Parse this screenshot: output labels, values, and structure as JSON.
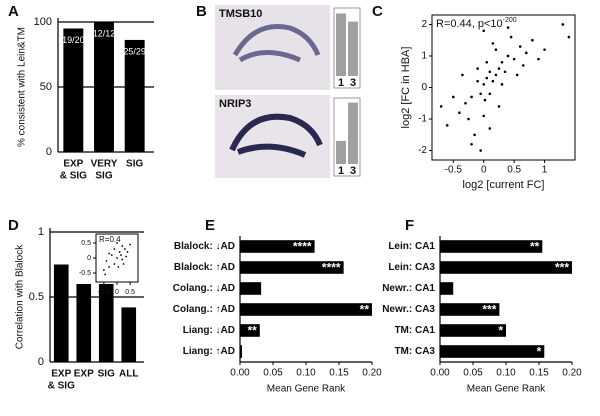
{
  "chart_data": [
    {
      "type": "bar",
      "panel": "A",
      "ylabel": "% consistent with Lein&TM",
      "categories": [
        [
          "EXP",
          "& SIG"
        ],
        [
          "VERY",
          "SIG"
        ],
        [
          "SIG"
        ]
      ],
      "values": [
        95,
        100,
        86.2
      ],
      "value_labels": [
        "19/20",
        "12/12",
        "25/29"
      ],
      "color": "#000000",
      "ylim": [
        0,
        100
      ],
      "yticks": [
        0,
        50,
        100
      ],
      "grid": true
    },
    {
      "type": "image",
      "panel": "B",
      "images": [
        {
          "title": "TMSB10",
          "categories": [
            "1",
            "3"
          ],
          "values": [
            0.92,
            0.8
          ]
        },
        {
          "title": "NRIP3",
          "categories": [
            "1",
            "3"
          ],
          "values": [
            0.35,
            0.93
          ]
        }
      ],
      "ylim": [
        0,
        1
      ],
      "color": "#a0a0a0"
    },
    {
      "type": "scatter",
      "panel": "C",
      "annotation": {
        "text": "R=0.44, p<10",
        "exponent": "-200"
      },
      "xlabel": "log2 [current FC]",
      "ylabel": "log2 [FC in HBA]",
      "color": "#000000",
      "x": [
        -0.6,
        -0.4,
        -0.3,
        -0.2,
        -0.15,
        -0.1,
        -0.05,
        0,
        0.02,
        0.05,
        0.1,
        0.15,
        0.2,
        0.25,
        0.3,
        0.35,
        0.4,
        0.5,
        0.6,
        0.7,
        0.8,
        1.0,
        1.3,
        -0.5,
        -0.35,
        -0.25,
        -0.1,
        0,
        0.05,
        0.1,
        0.2,
        0.3,
        0.45,
        0.55,
        0.65,
        -0.2,
        0,
        0.1,
        0.25,
        0.4,
        -0.7,
        0.9,
        1.4,
        -0.05,
        0.15
      ],
      "y": [
        -1.2,
        -0.8,
        -0.5,
        -0.3,
        -1.5,
        0.2,
        -0.2,
        0.1,
        -0.4,
        0.3,
        0.5,
        0.2,
        0.4,
        0.6,
        0.8,
        0.5,
        1.0,
        0.9,
        1.3,
        1.1,
        1.5,
        1.2,
        2.0,
        -0.3,
        0.4,
        -1.0,
        0.6,
        -0.9,
        0.8,
        -0.2,
        1.2,
        0.1,
        1.6,
        0.4,
        0.7,
        -1.8,
        1.8,
        -1.3,
        -0.6,
        1.9,
        -0.6,
        0.9,
        1.6,
        -2.0,
        1.4
      ],
      "xlim": [
        -0.85,
        1.5
      ],
      "ylim": [
        -2.3,
        2.3
      ],
      "xticks": [
        -0.5,
        0,
        0.5,
        1
      ],
      "yticks": [
        -2,
        -1,
        0,
        1,
        2
      ]
    },
    {
      "type": "bar",
      "panel": "D",
      "ylabel": "Correlation with Blalock",
      "categories": [
        [
          "EXP",
          "& SIG"
        ],
        [
          "EXP"
        ],
        [
          "SIG"
        ],
        [
          "ALL"
        ]
      ],
      "values": [
        0.75,
        0.6,
        0.6,
        0.42
      ],
      "color": "#000000",
      "ylim": [
        0,
        1
      ],
      "yticks": [
        0,
        0.5,
        1
      ],
      "grid": true,
      "inset": {
        "type": "scatter",
        "annotation": "R=0.4",
        "x": [
          -0.5,
          -0.4,
          -0.3,
          -0.2,
          -0.1,
          0,
          0.1,
          0.2,
          0.3,
          0.4,
          0.5,
          -0.3,
          -0.1,
          0.05,
          0.2,
          0.35,
          -0.45,
          0.25,
          0,
          0.15
        ],
        "y": [
          -0.4,
          -0.1,
          -0.3,
          0.1,
          -0.2,
          0,
          0.2,
          -0.05,
          0.3,
          0.2,
          0.45,
          0.15,
          0.3,
          -0.3,
          0.4,
          0.05,
          -0.55,
          -0.2,
          0.5,
          0.1
        ],
        "xlim": [
          -0.8,
          0.8
        ],
        "ylim": [
          -0.8,
          0.8
        ],
        "xticks": [
          -0.5,
          0,
          0.5
        ],
        "yticks": [
          -0.5,
          0,
          0.5
        ]
      }
    },
    {
      "type": "hbar",
      "panel": "E",
      "xlabel": "Mean Gene Rank",
      "categories": [
        "Blalock: ↓AD",
        "Blalock: ↑AD",
        "Colang.: ↓AD",
        "Colang.: ↑AD",
        "Liang: ↓AD",
        "Liang: ↑AD"
      ],
      "values": [
        0.113,
        0.157,
        0.032,
        0.2,
        0.03,
        0.003
      ],
      "annotations": [
        "****",
        "****",
        null,
        "**",
        "**",
        null
      ],
      "color": "#000000",
      "xlim": [
        0,
        0.2
      ],
      "xticks": [
        {
          "value": 0,
          "label": "0.00"
        },
        {
          "value": 0.05,
          "label": "0.05"
        },
        {
          "value": 0.1,
          "label": "0.10"
        },
        {
          "value": 0.15,
          "label": "0.15"
        },
        {
          "value": 0.2,
          "label": "0.20"
        }
      ]
    },
    {
      "type": "hbar",
      "panel": "F",
      "xlabel": "Mean Gene Rank",
      "categories": [
        "Lein: CA1",
        "Lein: CA3",
        "Newr.: CA1",
        "Newr.: CA3",
        "TM: CA1",
        "TM: CA3"
      ],
      "values": [
        0.155,
        0.2,
        0.02,
        0.09,
        0.1,
        0.158
      ],
      "annotations": [
        "**",
        "***",
        null,
        "***",
        "*",
        "*"
      ],
      "color": "#000000",
      "xlim": [
        0,
        0.2
      ],
      "xticks": [
        {
          "value": 0,
          "label": "0.00"
        },
        {
          "value": 0.05,
          "label": "0.05"
        },
        {
          "value": 0.1,
          "label": "0.10"
        },
        {
          "value": 0.15,
          "label": "0.15"
        },
        {
          "value": 0.2,
          "label": "0.20"
        }
      ]
    }
  ]
}
